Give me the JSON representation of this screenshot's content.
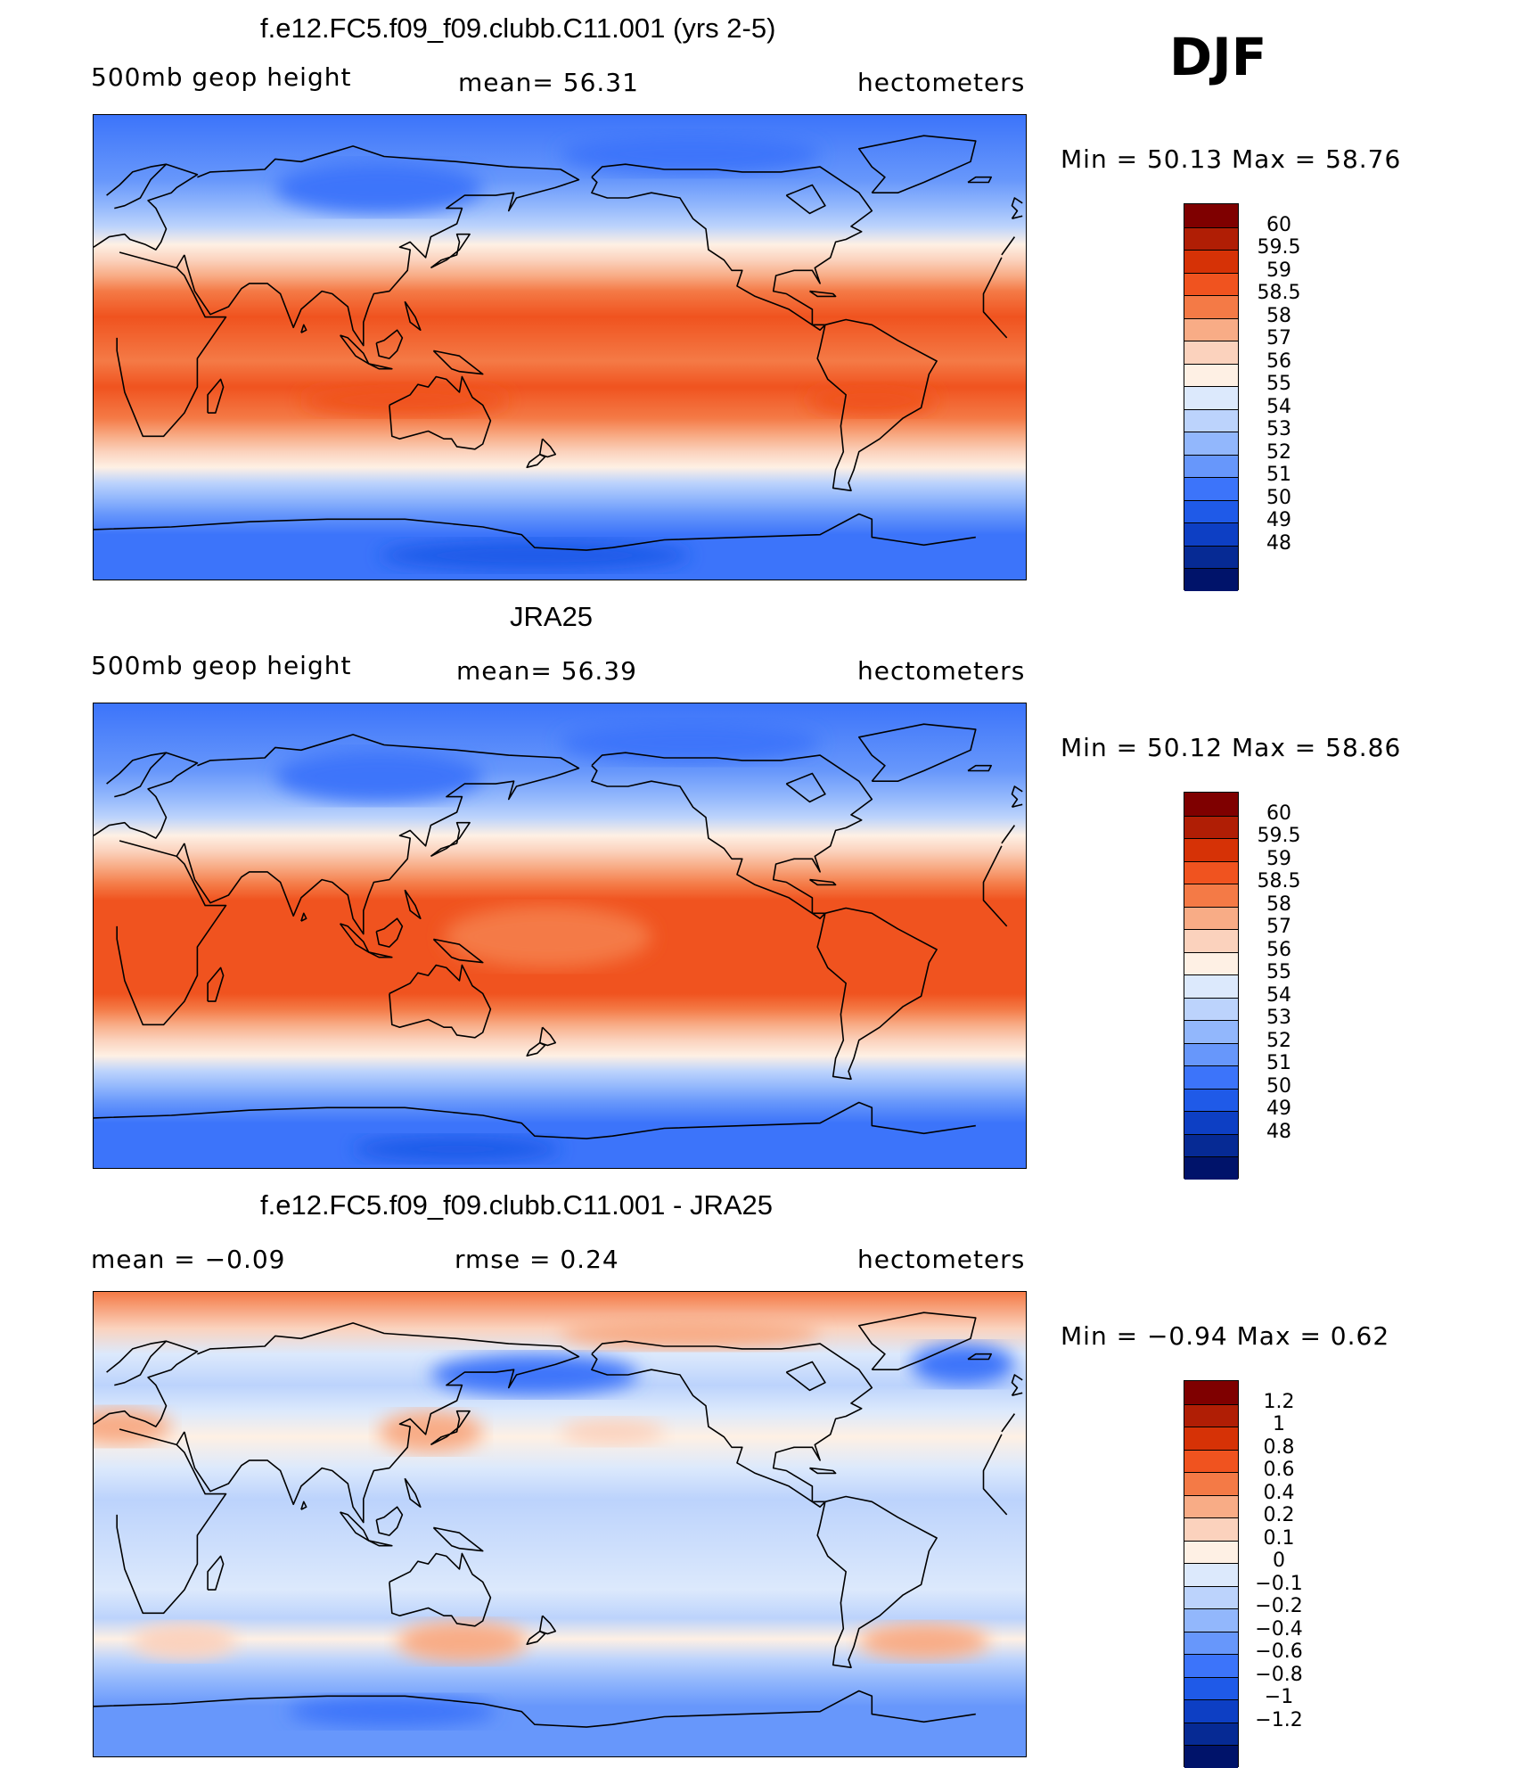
{
  "season": "DJF",
  "panels": [
    {
      "title": "f.e12.FC5.f09_f09.clubb.C11.001 (yrs 2-5)",
      "variable": "500mb  geop  height",
      "mean_text": "mean=   56.31",
      "units": "hectometers",
      "min_max": "Min  =    50.13  Max  =    58.76",
      "colorbar": {
        "colors": [
          "#7f0000",
          "#b01e05",
          "#d63206",
          "#f0531f",
          "#f47a46",
          "#f8ac86",
          "#fbd2bd",
          "#fef0e4",
          "#dce9fc",
          "#bcd3fc",
          "#92b7fc",
          "#6797fb",
          "#3c74fa",
          "#1f5ae8",
          "#0d3fc4",
          "#062a94",
          "#00136a"
        ],
        "labels": [
          "60",
          "59.5",
          "59",
          "58.5",
          "58",
          "57",
          "56",
          "55",
          "54",
          "53",
          "52",
          "51",
          "50",
          "49",
          "48"
        ]
      },
      "field": [
        {
          "lat": -90,
          "c": "#3c74fa"
        },
        {
          "lat": -72,
          "c": "#3c74fa"
        },
        {
          "lat": -64,
          "c": "#6797fb"
        },
        {
          "lat": -58,
          "c": "#92b7fc"
        },
        {
          "lat": -52,
          "c": "#bcd3fc"
        },
        {
          "lat": -46,
          "c": "#fef0e4"
        },
        {
          "lat": -40,
          "c": "#fbd2bd"
        },
        {
          "lat": -34,
          "c": "#f8ac86"
        },
        {
          "lat": -27,
          "c": "#f47a46"
        },
        {
          "lat": -15,
          "c": "#f0531f"
        },
        {
          "lat": -5,
          "c": "#f47a46"
        },
        {
          "lat": 12,
          "c": "#f0531f"
        },
        {
          "lat": 22,
          "c": "#f47a46"
        },
        {
          "lat": 28,
          "c": "#f8ac86"
        },
        {
          "lat": 34,
          "c": "#fbd2bd"
        },
        {
          "lat": 40,
          "c": "#fef0e4"
        },
        {
          "lat": 47,
          "c": "#bcd3fc"
        },
        {
          "lat": 55,
          "c": "#92b7fc"
        },
        {
          "lat": 65,
          "c": "#6797fb"
        },
        {
          "lat": 90,
          "c": "#3c74fa"
        }
      ],
      "blobs": [
        {
          "lon": 110,
          "lat": 62,
          "rx": 40,
          "ry": 10,
          "c": "#3c74fa"
        },
        {
          "lon": 230,
          "lat": 75,
          "rx": 50,
          "ry": 8,
          "c": "#3c74fa"
        },
        {
          "lon": 300,
          "lat": -20,
          "rx": 25,
          "ry": 6,
          "c": "#f0531f"
        },
        {
          "lon": 120,
          "lat": -20,
          "rx": 40,
          "ry": 6,
          "c": "#f0531f"
        },
        {
          "lon": 170,
          "lat": -80,
          "rx": 60,
          "ry": 6,
          "c": "#1f5ae8"
        }
      ]
    },
    {
      "title": "JRA25",
      "variable": "500mb  geop  height",
      "mean_text": "mean=   56.39",
      "units": "hectometers",
      "min_max": "Min  =    50.12  Max  =    58.86",
      "colorbar": {
        "colors": [
          "#7f0000",
          "#b01e05",
          "#d63206",
          "#f0531f",
          "#f47a46",
          "#f8ac86",
          "#fbd2bd",
          "#fef0e4",
          "#dce9fc",
          "#bcd3fc",
          "#92b7fc",
          "#6797fb",
          "#3c74fa",
          "#1f5ae8",
          "#0d3fc4",
          "#062a94",
          "#00136a"
        ],
        "labels": [
          "60",
          "59.5",
          "59",
          "58.5",
          "58",
          "57",
          "56",
          "55",
          "54",
          "53",
          "52",
          "51",
          "50",
          "49",
          "48"
        ]
      },
      "field": [
        {
          "lat": -90,
          "c": "#3c74fa"
        },
        {
          "lat": -72,
          "c": "#3c74fa"
        },
        {
          "lat": -64,
          "c": "#6797fb"
        },
        {
          "lat": -58,
          "c": "#92b7fc"
        },
        {
          "lat": -52,
          "c": "#bcd3fc"
        },
        {
          "lat": -46,
          "c": "#fef0e4"
        },
        {
          "lat": -40,
          "c": "#fbd2bd"
        },
        {
          "lat": -34,
          "c": "#f8ac86"
        },
        {
          "lat": -28,
          "c": "#f47a46"
        },
        {
          "lat": -22,
          "c": "#f0531f"
        },
        {
          "lat": 14,
          "c": "#f0531f"
        },
        {
          "lat": 20,
          "c": "#f47a46"
        },
        {
          "lat": 27,
          "c": "#f8ac86"
        },
        {
          "lat": 33,
          "c": "#fbd2bd"
        },
        {
          "lat": 39,
          "c": "#fef0e4"
        },
        {
          "lat": 46,
          "c": "#bcd3fc"
        },
        {
          "lat": 54,
          "c": "#92b7fc"
        },
        {
          "lat": 64,
          "c": "#6797fb"
        },
        {
          "lat": 90,
          "c": "#3c74fa"
        }
      ],
      "blobs": [
        {
          "lon": 175,
          "lat": 0,
          "rx": 40,
          "ry": 12,
          "c": "#f47a46"
        },
        {
          "lon": 110,
          "lat": 62,
          "rx": 40,
          "ry": 10,
          "c": "#3c74fa"
        },
        {
          "lon": 230,
          "lat": 75,
          "rx": 50,
          "ry": 8,
          "c": "#3c74fa"
        },
        {
          "lon": 140,
          "lat": -82,
          "rx": 40,
          "ry": 5,
          "c": "#1f5ae8"
        }
      ]
    },
    {
      "title": "f.e12.FC5.f09_f09.clubb.C11.001 - JRA25",
      "variable": "mean  =    −0.09",
      "mean_text": "rmse  =     0.24",
      "units": "hectometers",
      "min_max": "Min  =    −0.94  Max  =     0.62",
      "colorbar": {
        "colors": [
          "#7f0000",
          "#b01e05",
          "#d63206",
          "#f0531f",
          "#f47a46",
          "#f8ac86",
          "#fbd2bd",
          "#fef0e4",
          "#dce9fc",
          "#bcd3fc",
          "#92b7fc",
          "#6797fb",
          "#3c74fa",
          "#1f5ae8",
          "#0d3fc4",
          "#062a94",
          "#00136a"
        ],
        "labels": [
          "1.2",
          "1",
          "0.8",
          "0.6",
          "0.4",
          "0.2",
          "0.1",
          "0",
          "−0.1",
          "−0.2",
          "−0.4",
          "−0.6",
          "−0.8",
          "−1",
          "−1.2"
        ]
      },
      "field": [
        {
          "lat": -90,
          "c": "#6797fb"
        },
        {
          "lat": -70,
          "c": "#6797fb"
        },
        {
          "lat": -60,
          "c": "#92b7fc"
        },
        {
          "lat": -52,
          "c": "#bcd3fc"
        },
        {
          "lat": -44,
          "c": "#fef0e4"
        },
        {
          "lat": -36,
          "c": "#bcd3fc"
        },
        {
          "lat": -25,
          "c": "#dce9fc"
        },
        {
          "lat": 10,
          "c": "#bcd3fc"
        },
        {
          "lat": 22,
          "c": "#dce9fc"
        },
        {
          "lat": 34,
          "c": "#fef0e4"
        },
        {
          "lat": 44,
          "c": "#dce9fc"
        },
        {
          "lat": 54,
          "c": "#bcd3fc"
        },
        {
          "lat": 66,
          "c": "#dce9fc"
        },
        {
          "lat": 76,
          "c": "#fbd2bd"
        },
        {
          "lat": 90,
          "c": "#f47a46"
        }
      ],
      "blobs": [
        {
          "lon": 142,
          "lat": -45,
          "rx": 25,
          "ry": 8,
          "c": "#f8ac86"
        },
        {
          "lon": 320,
          "lat": -45,
          "rx": 25,
          "ry": 7,
          "c": "#f8ac86"
        },
        {
          "lon": 35,
          "lat": -45,
          "rx": 20,
          "ry": 7,
          "c": "#fbd2bd"
        },
        {
          "lon": 130,
          "lat": 36,
          "rx": 20,
          "ry": 8,
          "c": "#f8ac86"
        },
        {
          "lon": 10,
          "lat": 38,
          "rx": 20,
          "ry": 7,
          "c": "#f8ac86"
        },
        {
          "lon": 200,
          "lat": 36,
          "rx": 20,
          "ry": 5,
          "c": "#fbd2bd"
        },
        {
          "lon": 115,
          "lat": -72,
          "rx": 40,
          "ry": 6,
          "c": "#3c74fa"
        },
        {
          "lon": 170,
          "lat": 58,
          "rx": 40,
          "ry": 8,
          "c": "#3c74fa"
        },
        {
          "lon": 335,
          "lat": 62,
          "rx": 20,
          "ry": 8,
          "c": "#3c74fa"
        },
        {
          "lon": 230,
          "lat": 74,
          "rx": 50,
          "ry": 6,
          "c": "#f8ac86"
        }
      ]
    }
  ]
}
